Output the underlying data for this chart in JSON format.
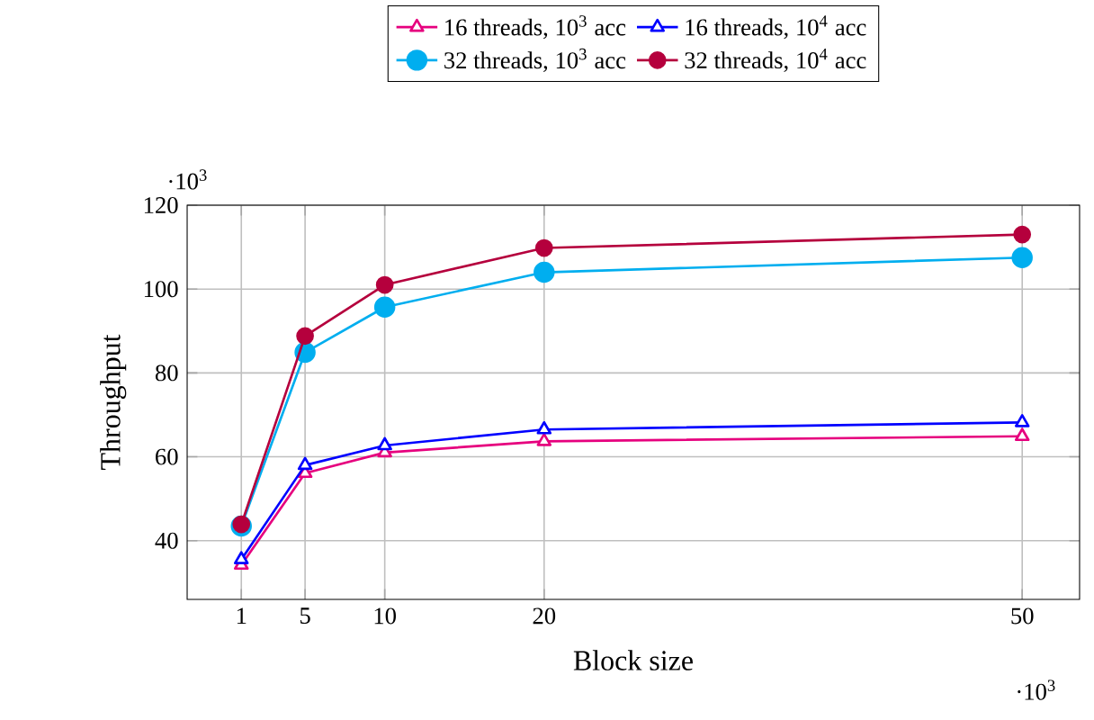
{
  "chart_data": {
    "type": "line",
    "xlabel": "Block size",
    "ylabel": "Throughput",
    "x": [
      1,
      5,
      10,
      20,
      50
    ],
    "series": [
      {
        "name": "16 threads, 10$^{3}$ acc",
        "color": "#e6007e",
        "marker": "triangle",
        "values": [
          34.2,
          56.1,
          61.0,
          63.7,
          64.9
        ]
      },
      {
        "name": "16 threads, 10$^{4}$ acc",
        "color": "#0000ff",
        "marker": "triangle",
        "values": [
          35.5,
          58.0,
          62.7,
          66.5,
          68.2
        ]
      },
      {
        "name": "32 threads, 10$^{3}$ acc",
        "color": "#00aeef",
        "marker": "circle",
        "values": [
          43.5,
          84.9,
          95.7,
          104.0,
          107.5
        ]
      },
      {
        "name": "32 threads, 10$^{4}$ acc",
        "color": "#b5003d",
        "marker": "circle",
        "values": [
          43.9,
          88.8,
          101.0,
          109.8,
          113.0
        ]
      }
    ],
    "xlim": [
      -2.4,
      53.6
    ],
    "ylim": [
      26,
      120
    ],
    "xticks": [
      1,
      5,
      10,
      20,
      50
    ],
    "yticks": [
      40,
      60,
      80,
      100,
      120
    ],
    "grid": true,
    "legend": "top",
    "line_style": "solid",
    "annotations": [
      "·10$^{3}$",
      "·10$^{3}$"
    ]
  }
}
